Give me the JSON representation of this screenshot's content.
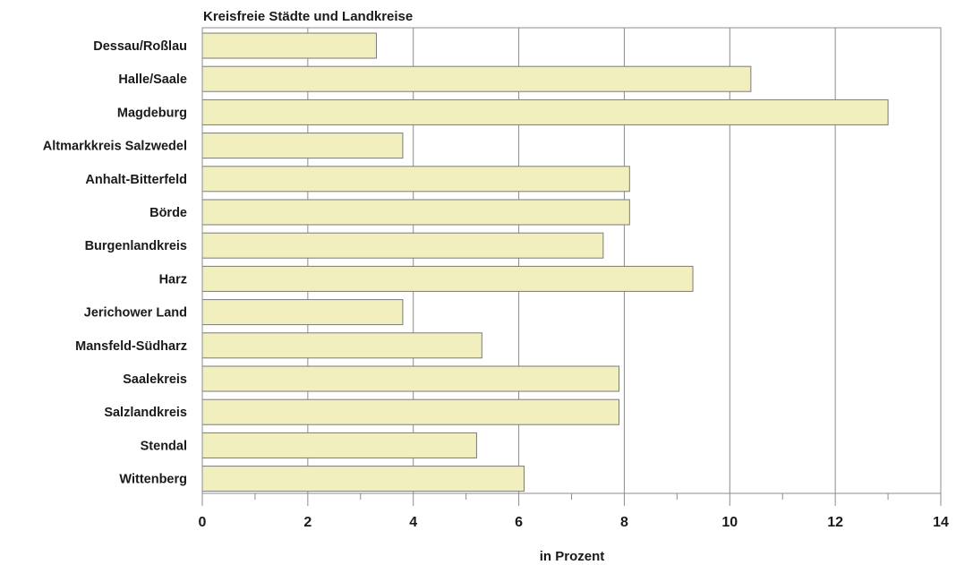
{
  "chart_data": {
    "type": "bar",
    "orientation": "horizontal",
    "title": "Kreisfreie Städte und Landkreise",
    "xlabel": "in Prozent",
    "ylabel": "",
    "categories": [
      "Dessau/Roßlau",
      "Halle/Saale",
      "Magdeburg",
      "Altmarkkreis Salzwedel",
      "Anhalt-Bitterfeld",
      "Börde",
      "Burgenlandkreis",
      "Harz",
      "Jerichower Land",
      "Mansfeld-Südharz",
      "Saalekreis",
      "Salzlandkreis",
      "Stendal",
      "Wittenberg"
    ],
    "values": [
      3.3,
      10.4,
      13.0,
      3.8,
      8.1,
      8.1,
      7.6,
      9.3,
      3.8,
      5.3,
      7.9,
      7.9,
      5.2,
      6.1
    ],
    "xlim": [
      0,
      14
    ],
    "xticks": [
      0,
      2,
      4,
      6,
      8,
      10,
      12,
      14
    ],
    "grid": true,
    "legend": "none",
    "colors": {
      "bar_fill": "#f2efbe",
      "bar_stroke": "#7a7a7a",
      "grid": "#8c8c8c",
      "frame": "#8c8c8c"
    }
  }
}
